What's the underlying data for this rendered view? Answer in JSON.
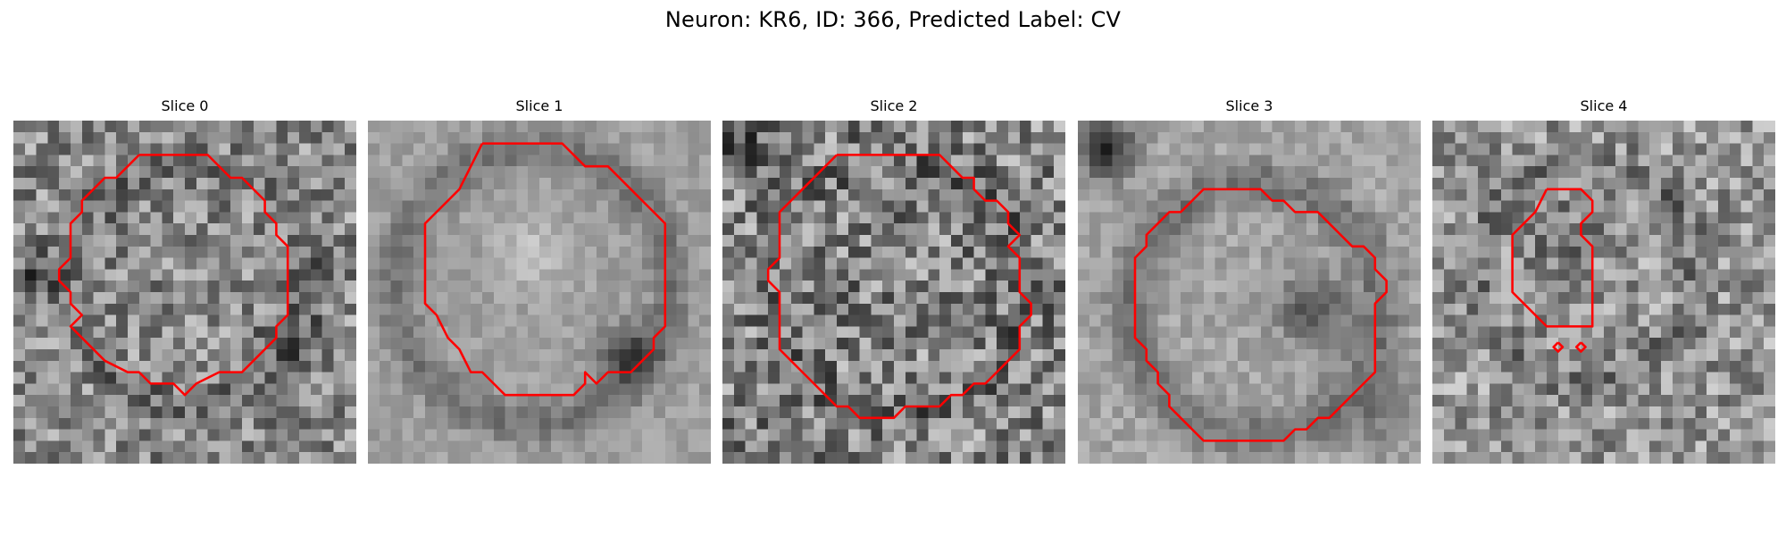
{
  "figure": {
    "title": "Neuron: KR6, ID: 366, Predicted Label: CV"
  },
  "colors": {
    "contour": "#ff0000",
    "background": "#ffffff"
  },
  "image_grid": 30,
  "panels": [
    {
      "title": "Slice 0",
      "texture": {
        "seed": 11,
        "base": 138,
        "contrast": 70,
        "noise": 0.9,
        "ring": {
          "cx": 15,
          "cy": 14,
          "r": 10.5,
          "w": 1.6,
          "amp": -30
        },
        "blobs": [
          {
            "x": 2,
            "y": 13,
            "r": 2,
            "amp": -70
          },
          {
            "x": 23,
            "y": 18,
            "r": 2,
            "amp": -50
          }
        ]
      },
      "contours": [
        [
          [
            11,
            3
          ],
          [
            17,
            3
          ],
          [
            19,
            5
          ],
          [
            20,
            5
          ],
          [
            22,
            7
          ],
          [
            22,
            8
          ],
          [
            23,
            9
          ],
          [
            23,
            10
          ],
          [
            24,
            11
          ],
          [
            24,
            14
          ],
          [
            24,
            17
          ],
          [
            23,
            18
          ],
          [
            23,
            19
          ],
          [
            22,
            20
          ],
          [
            21,
            21
          ],
          [
            20,
            22
          ],
          [
            19,
            22
          ],
          [
            18,
            22
          ],
          [
            16,
            23
          ],
          [
            15,
            24
          ],
          [
            14,
            23
          ],
          [
            12,
            23
          ],
          [
            11,
            22
          ],
          [
            10,
            22
          ],
          [
            10,
            22
          ],
          [
            8,
            21
          ],
          [
            8,
            21
          ],
          [
            6,
            19
          ],
          [
            5,
            18
          ],
          [
            6,
            17
          ],
          [
            5,
            16
          ],
          [
            5,
            15
          ],
          [
            4,
            14
          ],
          [
            4,
            13
          ],
          [
            5,
            12
          ],
          [
            5,
            10
          ],
          [
            5,
            9
          ],
          [
            6,
            8
          ],
          [
            6,
            7
          ],
          [
            8,
            5
          ],
          [
            9,
            5
          ],
          [
            11,
            3
          ]
        ]
      ]
    },
    {
      "title": "Slice 1",
      "texture": {
        "seed": 23,
        "base": 160,
        "contrast": 45,
        "noise": 0.45,
        "ring": {
          "cx": 14,
          "cy": 14,
          "r": 12,
          "w": 1.8,
          "amp": -45
        },
        "blobs": [
          {
            "x": 22,
            "y": 20,
            "r": 2.4,
            "amp": -90
          },
          {
            "x": 14,
            "y": 11,
            "r": 3,
            "amp": 35
          }
        ]
      },
      "contours": [
        [
          [
            10,
            2
          ],
          [
            17,
            2
          ],
          [
            19,
            4
          ],
          [
            20,
            4
          ],
          [
            21,
            4
          ],
          [
            22,
            5
          ],
          [
            22,
            5
          ],
          [
            23,
            6
          ],
          [
            24,
            7
          ],
          [
            25,
            8
          ],
          [
            26,
            9
          ],
          [
            26,
            10
          ],
          [
            26,
            11
          ],
          [
            26,
            12
          ],
          [
            26,
            13
          ],
          [
            26,
            18
          ],
          [
            25,
            19
          ],
          [
            25,
            20
          ],
          [
            24,
            21
          ],
          [
            23,
            22
          ],
          [
            21,
            22
          ],
          [
            20,
            23
          ],
          [
            19,
            22
          ],
          [
            19,
            23
          ],
          [
            18,
            24
          ],
          [
            12,
            24
          ],
          [
            11,
            23
          ],
          [
            10,
            22
          ],
          [
            9,
            22
          ],
          [
            8,
            20
          ],
          [
            8,
            20
          ],
          [
            7,
            19
          ],
          [
            6,
            17
          ],
          [
            5,
            16
          ],
          [
            5,
            15
          ],
          [
            5,
            14
          ],
          [
            5,
            13
          ],
          [
            5,
            12
          ],
          [
            5,
            9
          ],
          [
            6,
            8
          ],
          [
            7,
            7
          ],
          [
            8,
            6
          ],
          [
            10,
            2
          ]
        ]
      ]
    },
    {
      "title": "Slice 2",
      "texture": {
        "seed": 37,
        "base": 130,
        "contrast": 75,
        "noise": 1.0,
        "ring": {
          "cx": 15,
          "cy": 14,
          "r": 11,
          "w": 1.5,
          "amp": -20
        },
        "blobs": [
          {
            "x": 1,
            "y": 2,
            "r": 2,
            "amp": -50
          }
        ]
      },
      "contours": [
        [
          [
            10,
            3
          ],
          [
            19,
            3
          ],
          [
            20,
            4
          ],
          [
            21,
            5
          ],
          [
            22,
            5
          ],
          [
            22,
            6
          ],
          [
            23,
            7
          ],
          [
            24,
            7
          ],
          [
            25,
            8
          ],
          [
            25,
            9
          ],
          [
            26,
            10
          ],
          [
            25,
            11
          ],
          [
            26,
            12
          ],
          [
            26,
            13
          ],
          [
            26,
            15
          ],
          [
            27,
            16
          ],
          [
            27,
            17
          ],
          [
            26,
            18
          ],
          [
            26,
            19
          ],
          [
            26,
            20
          ],
          [
            25,
            21
          ],
          [
            24,
            22
          ],
          [
            23,
            23
          ],
          [
            22,
            23
          ],
          [
            21,
            24
          ],
          [
            20,
            24
          ],
          [
            19,
            25
          ],
          [
            16,
            25
          ],
          [
            15,
            26
          ],
          [
            12,
            26
          ],
          [
            11,
            25
          ],
          [
            10,
            25
          ],
          [
            9,
            24
          ],
          [
            8,
            23
          ],
          [
            7,
            22
          ],
          [
            6,
            21
          ],
          [
            5,
            20
          ],
          [
            5,
            19
          ],
          [
            5,
            17
          ],
          [
            5,
            16
          ],
          [
            5,
            15
          ],
          [
            4,
            14
          ],
          [
            4,
            13
          ],
          [
            5,
            12
          ],
          [
            5,
            11
          ],
          [
            5,
            8
          ],
          [
            6,
            7
          ],
          [
            7,
            6
          ],
          [
            8,
            5
          ],
          [
            10,
            3
          ]
        ]
      ]
    },
    {
      "title": "Slice 3",
      "texture": {
        "seed": 53,
        "base": 165,
        "contrast": 45,
        "noise": 0.55,
        "ring": {
          "cx": 15,
          "cy": 16,
          "r": 11,
          "w": 2.0,
          "amp": -50
        },
        "blobs": [
          {
            "x": 2,
            "y": 2,
            "r": 2.4,
            "amp": -120
          },
          {
            "x": 20,
            "y": 16,
            "r": 3,
            "amp": -80
          },
          {
            "x": 26,
            "y": 25,
            "r": 3,
            "amp": -40
          }
        ]
      },
      "contours": [
        [
          [
            13,
            6
          ],
          [
            16,
            6
          ],
          [
            17,
            7
          ],
          [
            18,
            7
          ],
          [
            19,
            8
          ],
          [
            19,
            8
          ],
          [
            21,
            8
          ],
          [
            22,
            9
          ],
          [
            23,
            10
          ],
          [
            24,
            11
          ],
          [
            25,
            11
          ],
          [
            26,
            12
          ],
          [
            26,
            13
          ],
          [
            26,
            13
          ],
          [
            27,
            14
          ],
          [
            27,
            15
          ],
          [
            26,
            16
          ],
          [
            26,
            17
          ],
          [
            26,
            22
          ],
          [
            25,
            23
          ],
          [
            24,
            24
          ],
          [
            24,
            24
          ],
          [
            23,
            25
          ],
          [
            22,
            26
          ],
          [
            21,
            26
          ],
          [
            20,
            27
          ],
          [
            19,
            27
          ],
          [
            18,
            28
          ],
          [
            11,
            28
          ],
          [
            10,
            27
          ],
          [
            9,
            26
          ],
          [
            8,
            25
          ],
          [
            8,
            24
          ],
          [
            7,
            23
          ],
          [
            7,
            22
          ],
          [
            6,
            21
          ],
          [
            6,
            20
          ],
          [
            5,
            19
          ],
          [
            5,
            18
          ],
          [
            5,
            16
          ],
          [
            5,
            15
          ],
          [
            5,
            13
          ],
          [
            5,
            12
          ],
          [
            6,
            11
          ],
          [
            6,
            10
          ],
          [
            7,
            9
          ],
          [
            8,
            8
          ],
          [
            9,
            8
          ],
          [
            10,
            7
          ],
          [
            11,
            6
          ],
          [
            13,
            6
          ]
        ]
      ]
    },
    {
      "title": "Slice 4",
      "texture": {
        "seed": 71,
        "base": 150,
        "contrast": 70,
        "noise": 0.85,
        "ring": {
          "cx": 13,
          "cy": 13,
          "r": 9.5,
          "w": 1.6,
          "amp": -35
        },
        "blobs": [
          {
            "x": 11,
            "y": 10,
            "r": 3,
            "amp": -35
          }
        ]
      },
      "contours": [
        [
          [
            10,
            6
          ],
          [
            13,
            6
          ],
          [
            14,
            7
          ],
          [
            14,
            8
          ],
          [
            13,
            9
          ],
          [
            13,
            10
          ],
          [
            14,
            11
          ],
          [
            14,
            12
          ],
          [
            14,
            18
          ],
          [
            10,
            18
          ],
          [
            8,
            16
          ],
          [
            7,
            15
          ],
          [
            7,
            10
          ],
          [
            8,
            9
          ],
          [
            9,
            8
          ],
          [
            10,
            6
          ]
        ],
        [
          [
            11,
            19.4
          ],
          [
            11.4,
            19.8
          ],
          [
            11,
            20.2
          ],
          [
            10.6,
            19.8
          ],
          [
            11,
            19.4
          ]
        ],
        [
          [
            13,
            19.4
          ],
          [
            13.4,
            19.8
          ],
          [
            13,
            20.2
          ],
          [
            12.6,
            19.8
          ],
          [
            13,
            19.4
          ]
        ]
      ]
    }
  ]
}
